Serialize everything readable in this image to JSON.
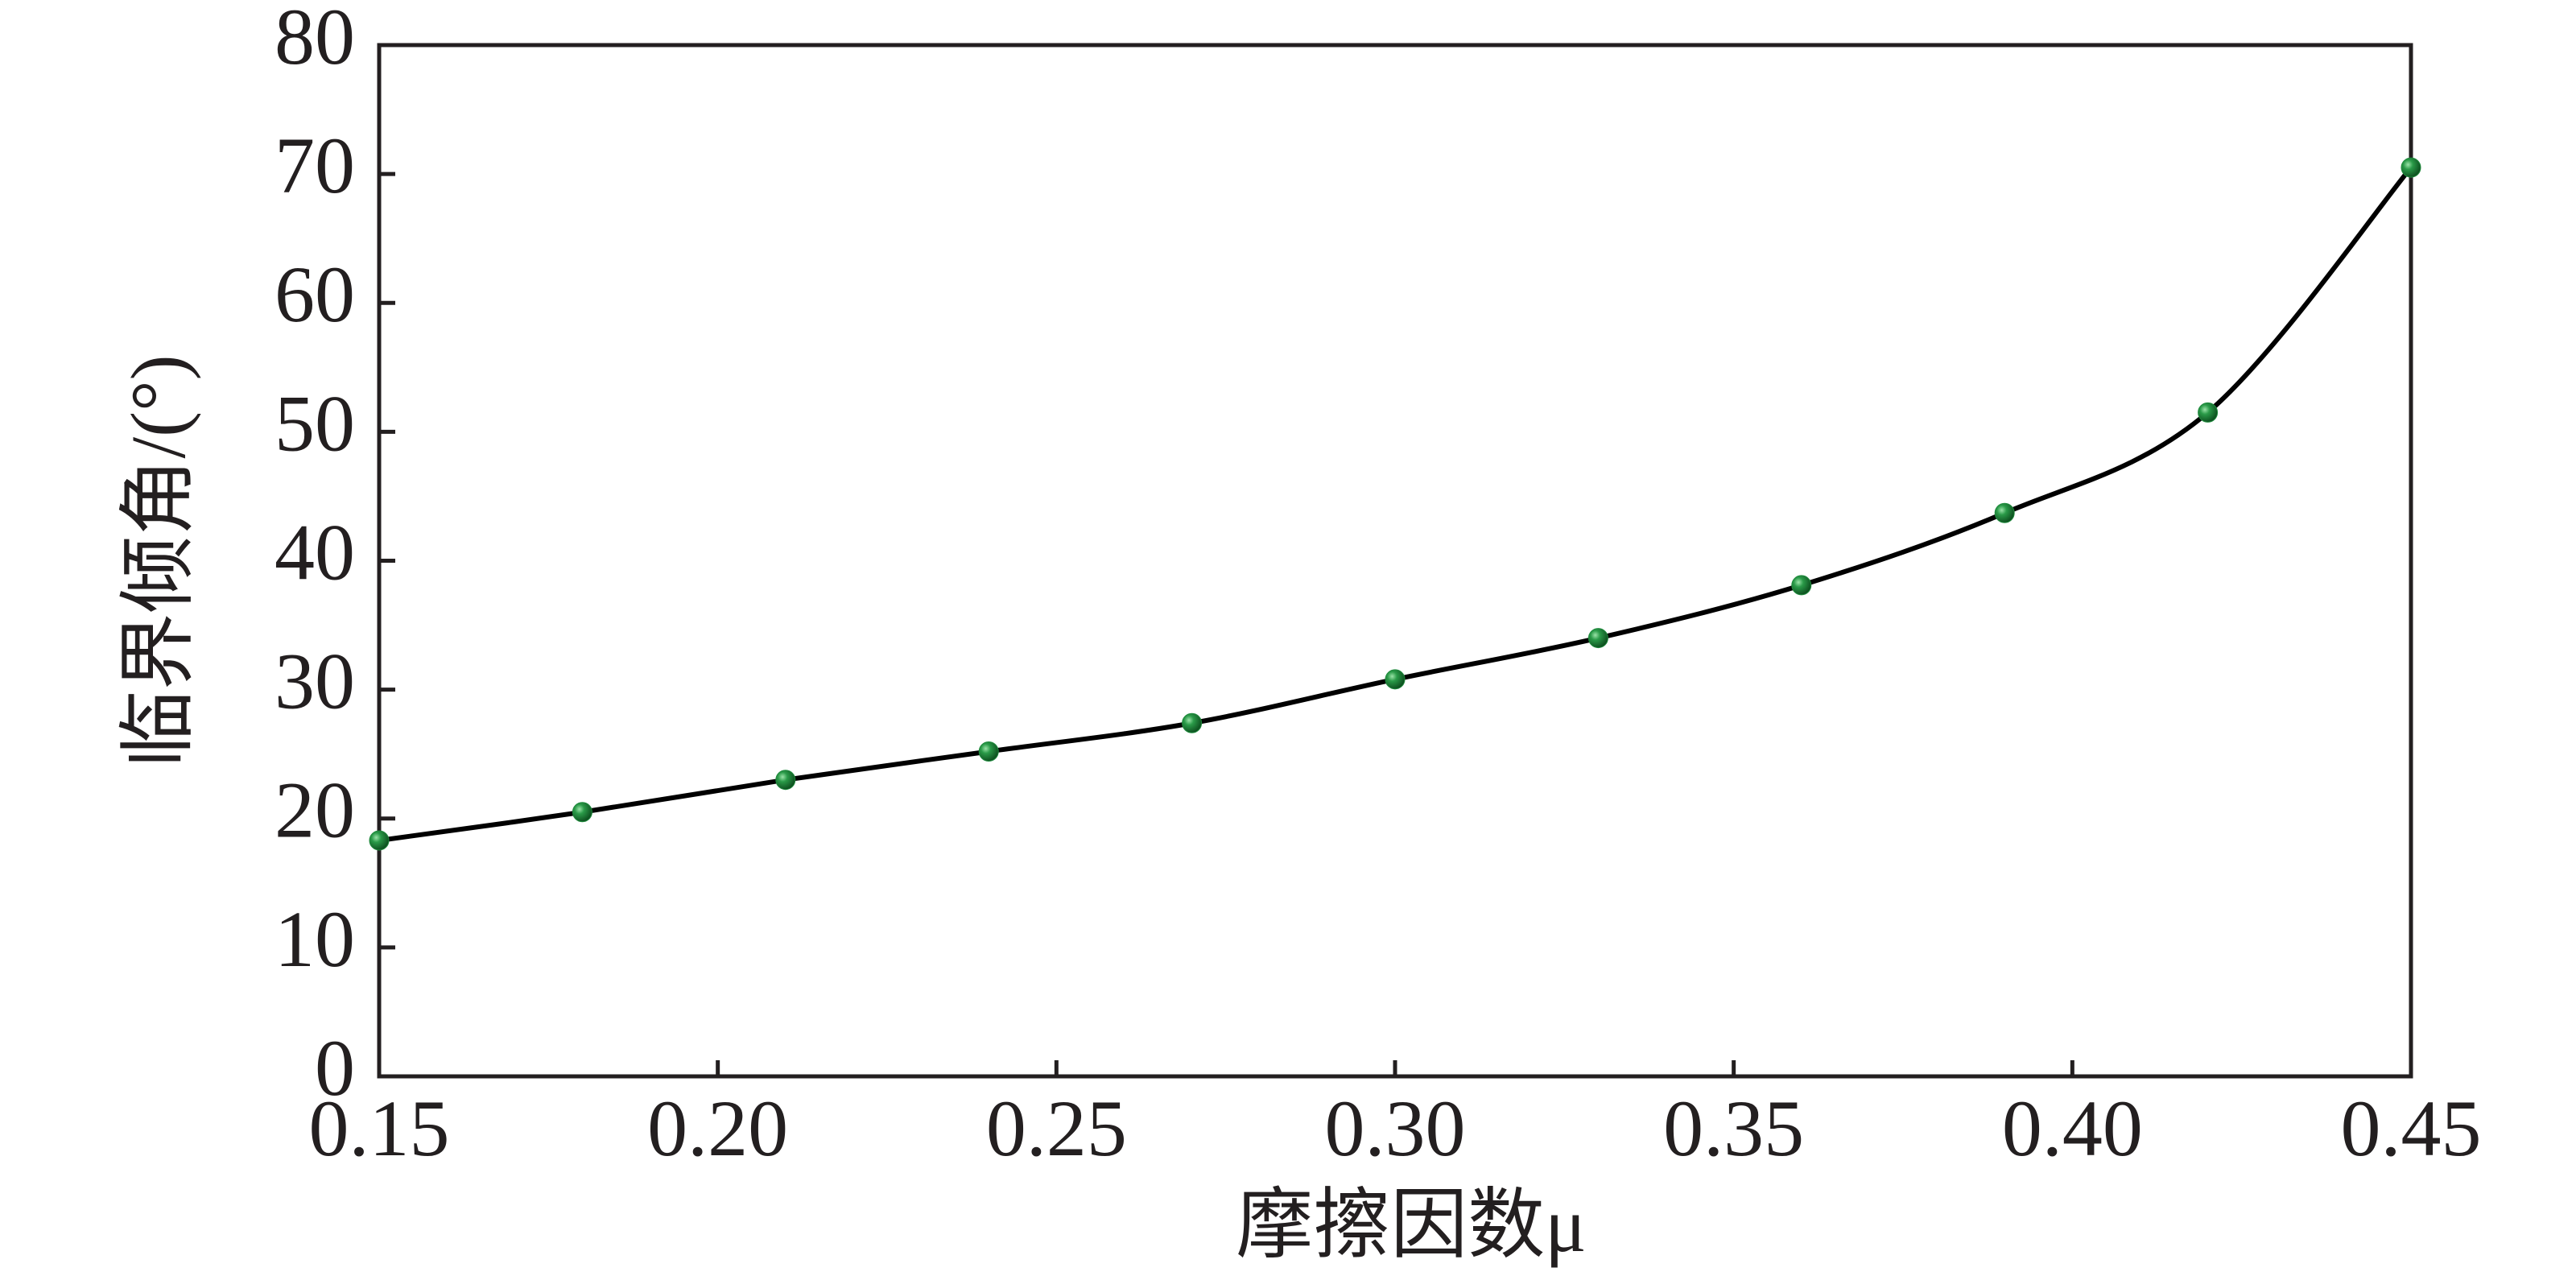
{
  "chart_data": {
    "type": "line",
    "x_label": "摩擦因数μ",
    "y_label": "临界倾角/(°)",
    "x": [
      0.15,
      0.18,
      0.21,
      0.24,
      0.27,
      0.3,
      0.33,
      0.36,
      0.39,
      0.42,
      0.45
    ],
    "series": [
      {
        "color": "#000000",
        "marker_color": "#1e8a3c",
        "values": [
          18.3,
          20.5,
          23.0,
          25.2,
          27.4,
          30.8,
          34.0,
          38.1,
          43.7,
          51.5,
          70.5
        ]
      }
    ],
    "xlim": [
      0.15,
      0.45
    ],
    "xticks": [
      0.15,
      {
        "value": 0.2,
        "label": "0.20"
      },
      0.25,
      {
        "value": 0.3,
        "label": "0.30"
      },
      0.35,
      {
        "value": 0.4,
        "label": "0.40"
      },
      0.45
    ],
    "ylim": [
      0,
      80
    ],
    "yticks": [
      0,
      10,
      20,
      30,
      40,
      50,
      60,
      70,
      80
    ],
    "grid": false
  }
}
